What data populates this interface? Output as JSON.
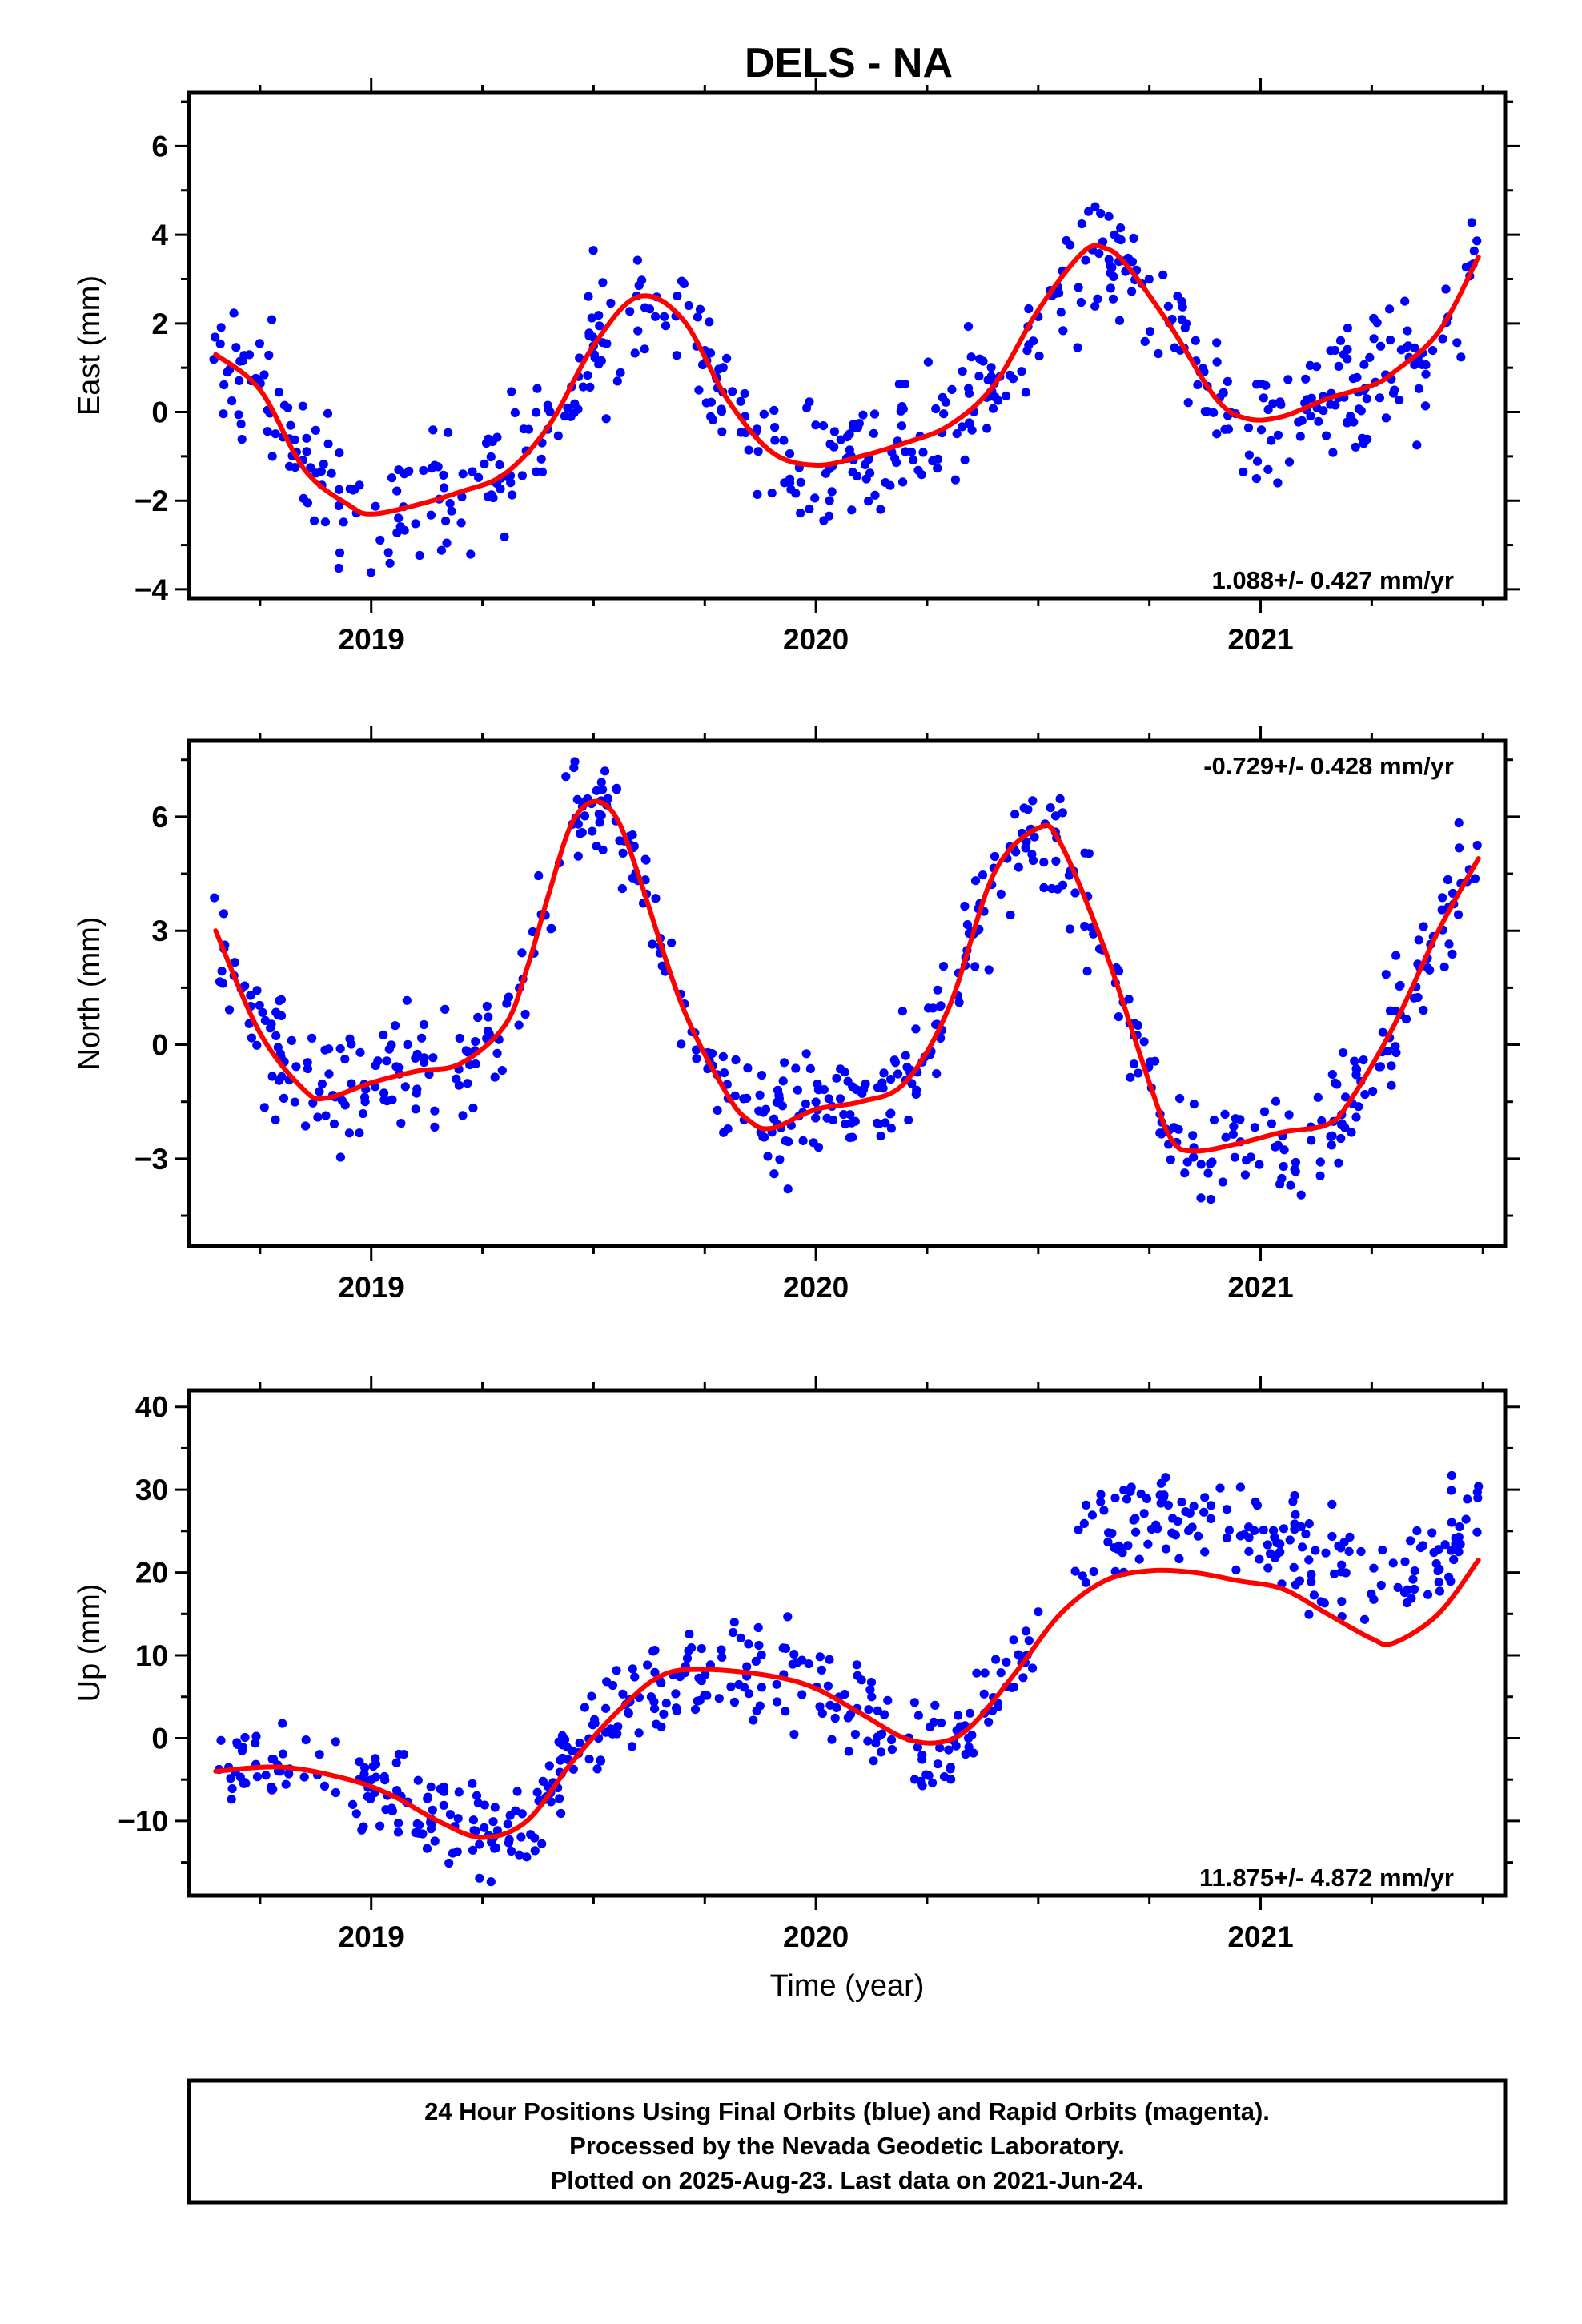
{
  "title": "DELS - NA",
  "xlabel": "Time (year)",
  "footer": {
    "line1": "24 Hour Positions Using Final Orbits (blue) and Rapid Orbits (magenta).",
    "line2": "Processed by the Nevada Geodetic Laboratory.",
    "line3": "Plotted on 2025-Aug-23. Last data on 2021-Jun-24."
  },
  "colors": {
    "final_orbit_points": "#0000ff",
    "fit_curve": "#ff0000"
  },
  "chart_data": [
    {
      "type": "scatter",
      "ylabel": "East (mm)",
      "xlim": [
        2018.59,
        2021.55
      ],
      "ylim": [
        -4.2,
        7.2
      ],
      "x_ticks": [
        2019,
        2020,
        2021
      ],
      "x_tick_labels": [
        "2019",
        "2020",
        "2021"
      ],
      "y_ticks": [
        -4,
        -2,
        0,
        2,
        4,
        6
      ],
      "y_tick_labels": [
        "−4",
        "−2",
        "0",
        "2",
        "4",
        "6"
      ],
      "rate_label": "1.088+/- 0.427 mm/yr",
      "rate_position": "bottom-right",
      "point_spread": 1.0,
      "fit": [
        [
          2018.65,
          1.3
        ],
        [
          2018.75,
          0.5
        ],
        [
          2018.85,
          -1.3
        ],
        [
          2018.95,
          -2.1
        ],
        [
          2019.0,
          -2.3
        ],
        [
          2019.1,
          -2.1
        ],
        [
          2019.2,
          -1.8
        ],
        [
          2019.3,
          -1.4
        ],
        [
          2019.4,
          -0.3
        ],
        [
          2019.5,
          1.5
        ],
        [
          2019.6,
          2.6
        ],
        [
          2019.7,
          2.1
        ],
        [
          2019.8,
          0.3
        ],
        [
          2019.9,
          -0.9
        ],
        [
          2020.0,
          -1.2
        ],
        [
          2020.1,
          -1.0
        ],
        [
          2020.2,
          -0.7
        ],
        [
          2020.3,
          -0.3
        ],
        [
          2020.4,
          0.6
        ],
        [
          2020.5,
          2.3
        ],
        [
          2020.6,
          3.6
        ],
        [
          2020.65,
          3.7
        ],
        [
          2020.7,
          3.3
        ],
        [
          2020.8,
          1.9
        ],
        [
          2020.9,
          0.3
        ],
        [
          2020.97,
          -0.15
        ],
        [
          2021.05,
          -0.1
        ],
        [
          2021.15,
          0.3
        ],
        [
          2021.25,
          0.6
        ],
        [
          2021.3,
          0.9
        ],
        [
          2021.4,
          1.8
        ],
        [
          2021.49,
          3.5
        ]
      ]
    },
    {
      "type": "scatter",
      "ylabel": "North (mm)",
      "xlim": [
        2018.59,
        2021.55
      ],
      "ylim": [
        -5.3,
        8.0
      ],
      "x_ticks": [
        2019,
        2020,
        2021
      ],
      "x_tick_labels": [
        "2019",
        "2020",
        "2021"
      ],
      "y_ticks": [
        -3,
        0,
        3,
        6
      ],
      "y_tick_labels": [
        "−3",
        "0",
        "3",
        "6"
      ],
      "rate_label": "-0.729+/- 0.428 mm/yr",
      "rate_position": "top-right",
      "point_spread": 1.0,
      "fit": [
        [
          2018.65,
          3.0
        ],
        [
          2018.75,
          0.3
        ],
        [
          2018.85,
          -1.2
        ],
        [
          2018.9,
          -1.4
        ],
        [
          2019.0,
          -1.0
        ],
        [
          2019.1,
          -0.7
        ],
        [
          2019.2,
          -0.5
        ],
        [
          2019.3,
          0.5
        ],
        [
          2019.35,
          2.0
        ],
        [
          2019.4,
          4.0
        ],
        [
          2019.45,
          5.8
        ],
        [
          2019.5,
          6.4
        ],
        [
          2019.55,
          6.0
        ],
        [
          2019.6,
          4.5
        ],
        [
          2019.7,
          1.0
        ],
        [
          2019.8,
          -1.3
        ],
        [
          2019.85,
          -2.0
        ],
        [
          2019.9,
          -2.2
        ],
        [
          2020.0,
          -1.7
        ],
        [
          2020.1,
          -1.5
        ],
        [
          2020.2,
          -1.0
        ],
        [
          2020.3,
          1.0
        ],
        [
          2020.4,
          4.5
        ],
        [
          2020.5,
          5.7
        ],
        [
          2020.55,
          5.3
        ],
        [
          2020.65,
          2.5
        ],
        [
          2020.75,
          -1.0
        ],
        [
          2020.8,
          -2.5
        ],
        [
          2020.85,
          -2.8
        ],
        [
          2020.95,
          -2.6
        ],
        [
          2021.05,
          -2.3
        ],
        [
          2021.15,
          -2.1
        ],
        [
          2021.2,
          -1.5
        ],
        [
          2021.3,
          0.5
        ],
        [
          2021.4,
          3.0
        ],
        [
          2021.49,
          4.9
        ]
      ]
    },
    {
      "type": "scatter",
      "ylabel": "Up (mm)",
      "xlim": [
        2018.59,
        2021.55
      ],
      "ylim": [
        -19,
        42
      ],
      "x_ticks": [
        2019,
        2020,
        2021
      ],
      "x_tick_labels": [
        "2019",
        "2020",
        "2021"
      ],
      "y_ticks": [
        -10,
        0,
        10,
        20,
        30,
        40
      ],
      "y_tick_labels": [
        "−10",
        "0",
        "10",
        "20",
        "30",
        "40"
      ],
      "rate_label": "11.875+/- 4.872 mm/yr",
      "rate_position": "bottom-right",
      "point_spread": 4.0,
      "data_gap": [
        2020.5,
        2020.58
      ],
      "offset_after_gap": 8,
      "fit": [
        [
          2018.65,
          -4
        ],
        [
          2018.8,
          -3.5
        ],
        [
          2018.95,
          -5
        ],
        [
          2019.05,
          -7
        ],
        [
          2019.15,
          -10
        ],
        [
          2019.25,
          -12
        ],
        [
          2019.35,
          -10
        ],
        [
          2019.45,
          -3
        ],
        [
          2019.55,
          3
        ],
        [
          2019.65,
          7.5
        ],
        [
          2019.75,
          8.3
        ],
        [
          2019.9,
          7.5
        ],
        [
          2020.0,
          6
        ],
        [
          2020.1,
          3
        ],
        [
          2020.2,
          0
        ],
        [
          2020.28,
          -0.5
        ],
        [
          2020.35,
          1.5
        ],
        [
          2020.45,
          8
        ],
        [
          2020.55,
          15
        ],
        [
          2020.65,
          19
        ],
        [
          2020.75,
          20.2
        ],
        [
          2020.85,
          20
        ],
        [
          2020.95,
          19
        ],
        [
          2021.05,
          18
        ],
        [
          2021.15,
          15
        ],
        [
          2021.25,
          12
        ],
        [
          2021.3,
          11.5
        ],
        [
          2021.4,
          15
        ],
        [
          2021.49,
          21.5
        ]
      ]
    }
  ]
}
